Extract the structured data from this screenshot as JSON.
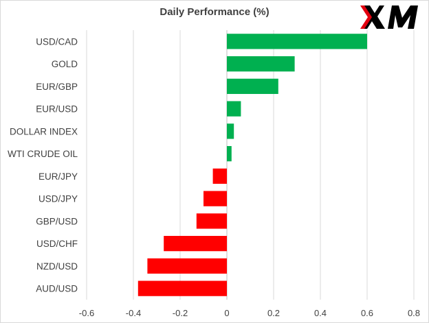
{
  "brand": {
    "logo_text": "XM",
    "logo_color": "#000000",
    "logo_accent": "#e3000f"
  },
  "chart_data": {
    "type": "bar",
    "orientation": "horizontal",
    "title": "Daily Performance (%)",
    "categories": [
      "USD/CAD",
      "GOLD",
      "EUR/GBP",
      "EUR/USD",
      "DOLLAR INDEX",
      "WTI CRUDE OIL",
      "EUR/JPY",
      "USD/JPY",
      "GBP/USD",
      "USD/CHF",
      "NZD/USD",
      "AUD/USD"
    ],
    "values": [
      0.6,
      0.29,
      0.22,
      0.06,
      0.03,
      0.02,
      -0.06,
      -0.1,
      -0.13,
      -0.27,
      -0.34,
      -0.38
    ],
    "xlim": [
      -0.6,
      0.8
    ],
    "xticks": [
      -0.6,
      -0.4,
      -0.2,
      0,
      0.2,
      0.4,
      0.6,
      0.8
    ],
    "xtick_labels": [
      "-0.6",
      "-0.4",
      "-0.2",
      "0",
      "0.2",
      "0.4",
      "0.6",
      "0.8"
    ],
    "grid": "vertical",
    "legend": "none",
    "colors": {
      "positive": "#00b050",
      "negative": "#ff0000",
      "grid": "#d9d9d9",
      "axis": "#bfbfbf",
      "text": "#404040"
    }
  }
}
